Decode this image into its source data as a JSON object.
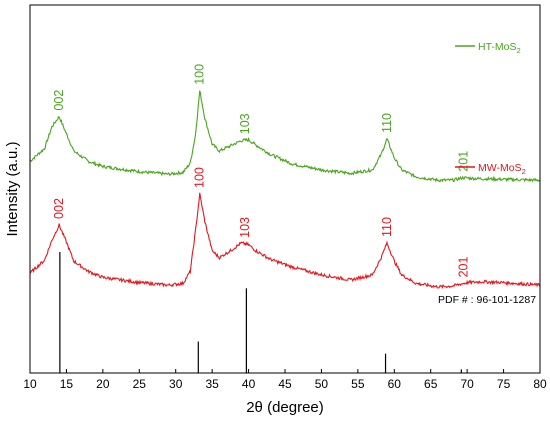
{
  "chart_data": {
    "type": "line",
    "xlabel": "2θ (degree)",
    "ylabel": "Intensity (a.u.)",
    "xlim": [
      10,
      80
    ],
    "x_ticks": [
      10,
      15,
      20,
      25,
      30,
      35,
      40,
      45,
      50,
      55,
      60,
      65,
      70,
      75,
      80
    ],
    "y_ticks_shown": false,
    "grid": false,
    "series": [
      {
        "name": "HT-MoS",
        "name_sub": "2",
        "color": "#4aa51e",
        "offset": 2.15,
        "points": [
          [
            10,
            0.3
          ],
          [
            12,
            0.45
          ],
          [
            13,
            0.7
          ],
          [
            14,
            0.82
          ],
          [
            15,
            0.62
          ],
          [
            16,
            0.42
          ],
          [
            18,
            0.3
          ],
          [
            20,
            0.24
          ],
          [
            25,
            0.18
          ],
          [
            29,
            0.15
          ],
          [
            31,
            0.17
          ],
          [
            32,
            0.28
          ],
          [
            32.7,
            0.6
          ],
          [
            33.3,
            1.12
          ],
          [
            34,
            0.8
          ],
          [
            35,
            0.5
          ],
          [
            36,
            0.42
          ],
          [
            37.5,
            0.48
          ],
          [
            39,
            0.54
          ],
          [
            40,
            0.55
          ],
          [
            41,
            0.49
          ],
          [
            43,
            0.38
          ],
          [
            46,
            0.27
          ],
          [
            50,
            0.2
          ],
          [
            54,
            0.16
          ],
          [
            57,
            0.2
          ],
          [
            58.2,
            0.38
          ],
          [
            59,
            0.56
          ],
          [
            60,
            0.34
          ],
          [
            61,
            0.2
          ],
          [
            63,
            0.12
          ],
          [
            66,
            0.08
          ],
          [
            68,
            0.08
          ],
          [
            69.5,
            0.11
          ],
          [
            71,
            0.1
          ],
          [
            75,
            0.09
          ],
          [
            80,
            0.08
          ]
        ],
        "peaks": [
          {
            "x": 14,
            "label": "002"
          },
          {
            "x": 33.3,
            "label": "100"
          },
          {
            "x": 39.5,
            "label": "103"
          },
          {
            "x": 59,
            "label": "110"
          },
          {
            "x": 69.5,
            "label": "201"
          }
        ]
      },
      {
        "name": "MW-MoS",
        "name_sub": "2",
        "color": "#e8151b",
        "offset": 0.95,
        "points": [
          [
            10,
            0.2
          ],
          [
            12,
            0.35
          ],
          [
            13,
            0.58
          ],
          [
            14,
            0.76
          ],
          [
            15,
            0.56
          ],
          [
            16,
            0.34
          ],
          [
            18,
            0.22
          ],
          [
            20,
            0.15
          ],
          [
            25,
            0.09
          ],
          [
            29,
            0.06
          ],
          [
            31,
            0.08
          ],
          [
            32,
            0.22
          ],
          [
            32.8,
            0.75
          ],
          [
            33.3,
            1.12
          ],
          [
            34,
            0.8
          ],
          [
            35,
            0.46
          ],
          [
            36,
            0.38
          ],
          [
            37.5,
            0.46
          ],
          [
            39,
            0.55
          ],
          [
            40,
            0.53
          ],
          [
            41,
            0.46
          ],
          [
            43,
            0.36
          ],
          [
            46,
            0.27
          ],
          [
            50,
            0.18
          ],
          [
            54,
            0.12
          ],
          [
            57,
            0.18
          ],
          [
            58.2,
            0.38
          ],
          [
            59,
            0.55
          ],
          [
            60,
            0.34
          ],
          [
            61,
            0.18
          ],
          [
            63,
            0.08
          ],
          [
            66,
            0.04
          ],
          [
            68,
            0.05
          ],
          [
            70,
            0.09
          ],
          [
            72,
            0.1
          ],
          [
            75,
            0.09
          ],
          [
            80,
            0.06
          ]
        ],
        "peaks": [
          {
            "x": 14,
            "label": "002"
          },
          {
            "x": 33.3,
            "label": "100"
          },
          {
            "x": 39.5,
            "label": "103"
          },
          {
            "x": 59,
            "label": "110"
          },
          {
            "x": 69.5,
            "label": "201"
          }
        ]
      }
    ],
    "reference": {
      "label": "PDF # : 96-101-1287",
      "color": "#000000",
      "lines": [
        {
          "x": 14.1,
          "intensity": 1.0
        },
        {
          "x": 33.1,
          "intensity": 0.26
        },
        {
          "x": 39.7,
          "intensity": 0.7
        },
        {
          "x": 58.8,
          "intensity": 0.16
        },
        {
          "x": 69.2,
          "intensity": 0.03
        }
      ]
    }
  }
}
